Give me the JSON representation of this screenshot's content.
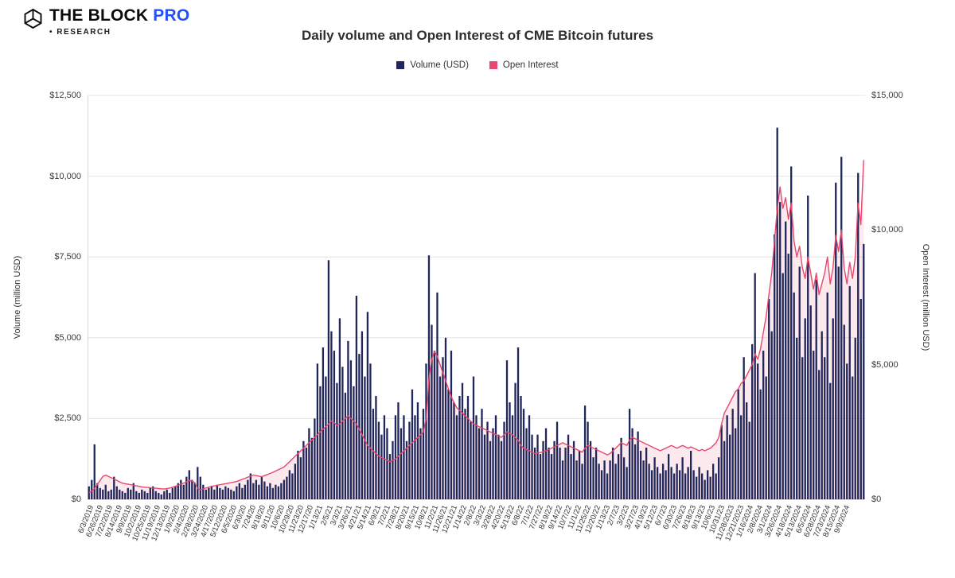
{
  "header": {
    "brand": {
      "name": "THE BLOCK",
      "pro": "PRO",
      "bullet": "•",
      "research": "RESEARCH",
      "pro_color": "#2250f4"
    },
    "title": "Daily volume and Open Interest of CME Bitcoin futures"
  },
  "legend": [
    {
      "label": "Volume (USD)",
      "color": "#20265a"
    },
    {
      "label": "Open Interest",
      "color": "#e8476e"
    }
  ],
  "axes": {
    "left": {
      "title": "Volume (million USD)",
      "max": 12500,
      "ticks": [
        "$0",
        "$2,500",
        "$5,000",
        "$7,500",
        "$10,000",
        "$12,500"
      ],
      "tick_values": [
        0,
        2500,
        5000,
        7500,
        10000,
        12500
      ]
    },
    "right": {
      "title": "Open Interest (million USD)",
      "max": 15000,
      "ticks": [
        "$0",
        "$5,000",
        "$10,000",
        "$15,000"
      ],
      "tick_values": [
        0,
        5000,
        10000,
        15000
      ]
    },
    "x_labels": [
      "6/3/2019",
      "6/26/2019",
      "7/22/2019",
      "8/14/2019",
      "9/9/2019",
      "10/2/2019",
      "10/25/2019",
      "11/19/2019",
      "12/13/2019",
      "1/9/2020",
      "2/4/2020",
      "2/28/2020",
      "3/24/2020",
      "4/17/2020",
      "5/12/2020",
      "6/5/2020",
      "6/30/20",
      "7/24/20",
      "8/18/20",
      "9/11/20",
      "10/6/20",
      "10/29/20",
      "11/23/20",
      "12/17/20",
      "1/13/21",
      "2/5/21",
      "3/3/21",
      "3/26/21",
      "4/21/21",
      "5/14/21",
      "6/9/21",
      "7/2/21",
      "7/28/21",
      "8/20/21",
      "9/15/21",
      "10/8/21",
      "11/2/21",
      "11/26/21",
      "12/21/21",
      "1/14/22",
      "2/8/22",
      "3/3/22",
      "3/28/22",
      "4/20/22",
      "5/13/22",
      "6/8/22",
      "7/1/22",
      "7/27/22",
      "8/19/22",
      "9/14/22",
      "10/7/22",
      "11/1/22",
      "11/25/22",
      "12/20/22",
      "1/13/23",
      "2/7/23",
      "3/2/23",
      "3/27/23",
      "4/19/23",
      "5/12/23",
      "6/7/23",
      "6/30/23",
      "7/26/23",
      "8/18/23",
      "9/13/23",
      "10/6/23",
      "10/31/23",
      "11/28/2023",
      "12/21/2023",
      "1/16/2024",
      "2/8/2024",
      "3/1/2024",
      "3/26/2024",
      "4/18/2024",
      "5/13/2024",
      "6/5/2024",
      "6/28/2024",
      "7/23/2024",
      "8/15/2024",
      "9/9/2024"
    ]
  },
  "chart_data": {
    "type": "bar+line",
    "title": "Daily volume and Open Interest of CME Bitcoin futures",
    "x_start": "6/3/2019",
    "x_end": "10/11/2024",
    "sampling": "weekly (downsampled from daily bars)",
    "grid": "horizontal",
    "legend_position": "top-center",
    "series": [
      {
        "name": "Volume (USD)",
        "type": "bar",
        "axis": "left",
        "unit": "million USD",
        "color": "#20265a",
        "ylim": [
          0,
          12500
        ],
        "values": [
          400,
          600,
          1700,
          500,
          350,
          300,
          450,
          250,
          300,
          700,
          400,
          300,
          250,
          200,
          350,
          300,
          500,
          250,
          200,
          300,
          250,
          200,
          350,
          400,
          250,
          200,
          150,
          250,
          300,
          200,
          350,
          400,
          500,
          600,
          450,
          700,
          900,
          600,
          500,
          1000,
          700,
          450,
          300,
          350,
          400,
          300,
          450,
          350,
          300,
          400,
          350,
          300,
          250,
          400,
          500,
          350,
          450,
          600,
          800,
          500,
          600,
          450,
          700,
          550,
          400,
          500,
          350,
          450,
          400,
          500,
          600,
          700,
          900,
          800,
          1100,
          1500,
          1300,
          1800,
          1600,
          2200,
          1900,
          2500,
          4200,
          3500,
          4700,
          3800,
          7400,
          5200,
          4600,
          3600,
          5600,
          4100,
          3300,
          4900,
          4300,
          3500,
          6300,
          4500,
          5200,
          3800,
          5800,
          4200,
          2800,
          3200,
          2400,
          2000,
          2600,
          2200,
          1400,
          1800,
          2600,
          3000,
          2200,
          2600,
          1800,
          2400,
          3400,
          2600,
          3000,
          2200,
          2800,
          4200,
          7550,
          5400,
          4600,
          6400,
          3800,
          4400,
          5000,
          3400,
          4600,
          3000,
          2600,
          3200,
          3600,
          2800,
          3200,
          2400,
          3800,
          2600,
          2200,
          2800,
          2000,
          2400,
          1800,
          2200,
          2600,
          2000,
          1800,
          2400,
          4300,
          3000,
          2600,
          3600,
          4700,
          3200,
          2800,
          2200,
          2600,
          2000,
          1600,
          2000,
          1400,
          1800,
          2200,
          1600,
          1400,
          1800,
          2400,
          1600,
          1200,
          1600,
          2000,
          1400,
          1800,
          1200,
          1500,
          1100,
          2900,
          2400,
          1800,
          1300,
          1600,
          1100,
          900,
          1200,
          800,
          1200,
          1600,
          1100,
          1400,
          1900,
          1300,
          1000,
          2800,
          2200,
          1700,
          2100,
          1500,
          1200,
          1600,
          1100,
          900,
          1300,
          1000,
          800,
          1100,
          900,
          1400,
          1000,
          800,
          1100,
          900,
          1300,
          800,
          1000,
          1500,
          900,
          700,
          1000,
          800,
          600,
          900,
          700,
          1100,
          800,
          1300,
          2300,
          1800,
          2600,
          2000,
          2800,
          2200,
          3400,
          2600,
          4400,
          3000,
          2400,
          4800,
          7000,
          4200,
          3400,
          4600,
          3800,
          6200,
          5200,
          8200,
          11500,
          9200,
          7000,
          8600,
          7600,
          10300,
          6400,
          5000,
          7200,
          4400,
          5600,
          9400,
          6000,
          4600,
          6800,
          4000,
          5200,
          4400,
          6400,
          3600,
          5600,
          9800,
          7200,
          10600,
          5400,
          4200,
          6600,
          3800,
          5000,
          10100,
          6200,
          7900
        ]
      },
      {
        "name": "Open Interest",
        "type": "line",
        "axis": "right",
        "unit": "million USD",
        "color": "#e8476e",
        "fill": "rgba(232,71,110,0.12)",
        "ylim": [
          0,
          15000
        ],
        "values": [
          250,
          300,
          400,
          550,
          700,
          850,
          900,
          850,
          800,
          750,
          700,
          650,
          600,
          580,
          560,
          540,
          520,
          500,
          480,
          460,
          450,
          440,
          430,
          420,
          410,
          400,
          390,
          380,
          400,
          420,
          450,
          480,
          520,
          560,
          600,
          650,
          700,
          680,
          620,
          400,
          350,
          380,
          420,
          450,
          480,
          500,
          520,
          540,
          560,
          580,
          600,
          620,
          640,
          660,
          700,
          740,
          780,
          820,
          860,
          900,
          880,
          860,
          840,
          880,
          920,
          960,
          1000,
          1050,
          1100,
          1150,
          1200,
          1300,
          1400,
          1500,
          1600,
          1700,
          1800,
          1900,
          2000,
          2100,
          2200,
          2300,
          2400,
          2500,
          2600,
          2700,
          2800,
          2900,
          2850,
          2750,
          2800,
          2900,
          3000,
          3100,
          3000,
          2900,
          2800,
          2600,
          2400,
          2200,
          2000,
          1900,
          1800,
          1700,
          1600,
          1550,
          1500,
          1450,
          1400,
          1450,
          1500,
          1600,
          1700,
          1800,
          1900,
          2000,
          2100,
          2200,
          2300,
          2400,
          2500,
          3000,
          4500,
          5200,
          5500,
          5300,
          5000,
          4700,
          4400,
          4100,
          3800,
          3600,
          3400,
          3300,
          3200,
          3100,
          3000,
          2900,
          2800,
          2750,
          2700,
          2650,
          2600,
          2550,
          2500,
          2450,
          2400,
          2350,
          2300,
          2400,
          2500,
          2450,
          2400,
          2300,
          2200,
          2000,
          1900,
          1850,
          1800,
          1750,
          1700,
          1720,
          1740,
          1760,
          1800,
          1850,
          1900,
          1950,
          2000,
          2050,
          2100,
          2050,
          2000,
          1950,
          1900,
          1850,
          1800,
          1750,
          1900,
          2000,
          1950,
          1900,
          1850,
          1800,
          1750,
          1700,
          1650,
          1700,
          1800,
          1900,
          2000,
          2100,
          2050,
          2000,
          2200,
          2300,
          2250,
          2200,
          2150,
          2100,
          2050,
          2000,
          1950,
          1900,
          1850,
          1800,
          1850,
          1900,
          1950,
          2000,
          1950,
          1900,
          1950,
          2000,
          1950,
          1900,
          1950,
          1900,
          1850,
          1800,
          1850,
          1800,
          1850,
          1900,
          2000,
          2100,
          2300,
          2800,
          3200,
          3400,
          3600,
          3800,
          4000,
          4100,
          4300,
          4400,
          4600,
          4800,
          5000,
          5400,
          5200,
          5600,
          6200,
          6800,
          7600,
          8400,
          9600,
          10800,
          11600,
          10800,
          11200,
          10400,
          11000,
          9600,
          9000,
          9400,
          8600,
          8200,
          9000,
          8400,
          7800,
          8400,
          7600,
          8000,
          8400,
          9000,
          8000,
          8600,
          9800,
          9200,
          10000,
          8600,
          8000,
          8800,
          8200,
          9000,
          11000,
          10200,
          12600
        ]
      }
    ]
  },
  "style": {
    "grid_color": "#e4e4e4",
    "baseline_color": "#b9b9b9",
    "axis_line_color": "#d6d6d6"
  }
}
